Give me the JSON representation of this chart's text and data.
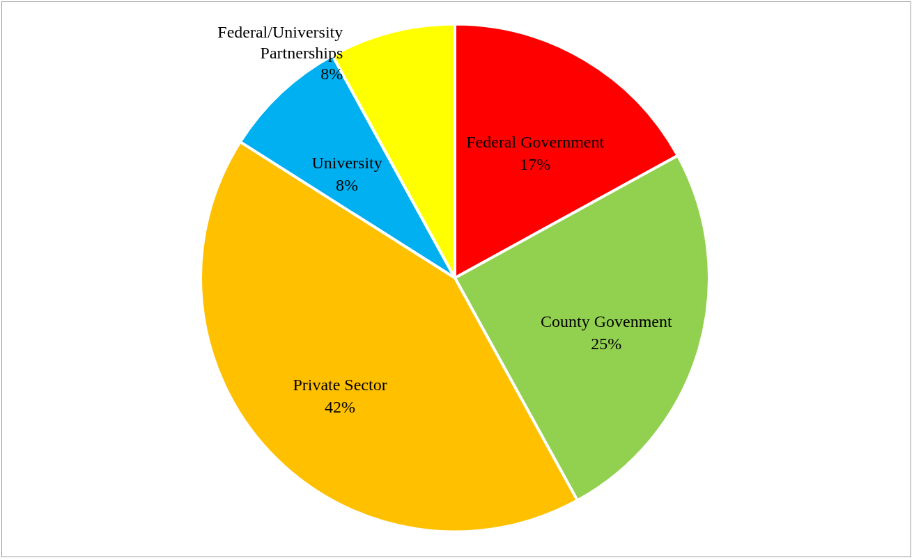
{
  "chart_data": {
    "type": "pie",
    "categories": [
      "Federal Government",
      "County Govenment",
      "Private Sector",
      "University",
      "Federal/University Partnerships"
    ],
    "values": [
      17,
      25,
      42,
      8,
      8
    ],
    "colors": [
      "#ff0000",
      "#92d050",
      "#ffc000",
      "#00b0f0",
      "#ffff00"
    ],
    "value_labels": [
      "17%",
      "25%",
      "42%",
      "8%",
      "8%"
    ]
  }
}
